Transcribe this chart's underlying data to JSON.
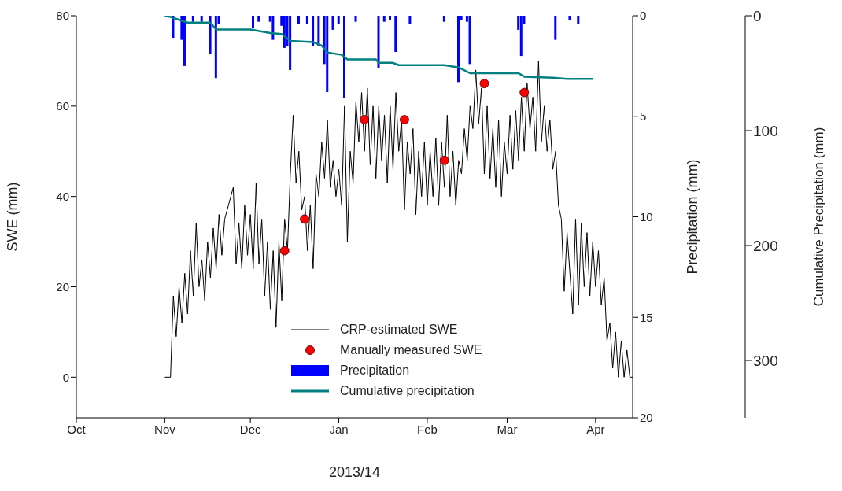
{
  "chart_data": {
    "type": "line",
    "xlabel": "2013/14",
    "ylabel": "SWE (mm)",
    "y2label": "Precipitation (mm)",
    "y3label": "Cumulative Precipitation (mm)",
    "xlim": [
      "2013-10-01",
      "2014-04-14"
    ],
    "xticks": [
      {
        "value": "2013-10-01",
        "label": "Oct"
      },
      {
        "value": "2013-11-01",
        "label": "Nov"
      },
      {
        "value": "2013-12-01",
        "label": "Dec"
      },
      {
        "value": "2014-01-01",
        "label": "Jan"
      },
      {
        "value": "2014-02-01",
        "label": "Feb"
      },
      {
        "value": "2014-03-01",
        "label": "Mar"
      },
      {
        "value": "2014-04-01",
        "label": "Apr"
      }
    ],
    "ylim": [
      -9,
      80
    ],
    "yticks": [
      0,
      20,
      40,
      60,
      80
    ],
    "y2lim": [
      20,
      0
    ],
    "y2ticks": [
      0,
      5,
      10,
      15,
      20
    ],
    "y3lim": [
      350,
      0
    ],
    "y3ticks": [
      0,
      100,
      200,
      300
    ],
    "legend": "bottom",
    "line_style": "solid",
    "series": [
      {
        "name": "CRP-estimated SWE",
        "color": "#000000",
        "marker": "none",
        "x": [
          "2013-11-01",
          "2013-11-03",
          "2013-11-04",
          "2013-11-05",
          "2013-11-06",
          "2013-11-07",
          "2013-11-08",
          "2013-11-09",
          "2013-11-10",
          "2013-11-11",
          "2013-11-12",
          "2013-11-13",
          "2013-11-14",
          "2013-11-15",
          "2013-11-16",
          "2013-11-17",
          "2013-11-18",
          "2013-11-19",
          "2013-11-20",
          "2013-11-21",
          "2013-11-22",
          "2013-11-25",
          "2013-11-26",
          "2013-11-27",
          "2013-11-28",
          "2013-11-29",
          "2013-11-30",
          "2013-12-01",
          "2013-12-02",
          "2013-12-03",
          "2013-12-04",
          "2013-12-05",
          "2013-12-06",
          "2013-12-07",
          "2013-12-08",
          "2013-12-09",
          "2013-12-10",
          "2013-12-11",
          "2013-12-12",
          "2013-12-13",
          "2013-12-14",
          "2013-12-15",
          "2013-12-16",
          "2013-12-17",
          "2013-12-18",
          "2013-12-19",
          "2013-12-20",
          "2013-12-21",
          "2013-12-22",
          "2013-12-23",
          "2013-12-24",
          "2013-12-25",
          "2013-12-26",
          "2013-12-27",
          "2013-12-28",
          "2013-12-29",
          "2013-12-30",
          "2013-12-31",
          "2014-01-01",
          "2014-01-02",
          "2014-01-03",
          "2014-01-04",
          "2014-01-05",
          "2014-01-06",
          "2014-01-07",
          "2014-01-08",
          "2014-01-09",
          "2014-01-10",
          "2014-01-11",
          "2014-01-12",
          "2014-01-13",
          "2014-01-14",
          "2014-01-15",
          "2014-01-16",
          "2014-01-17",
          "2014-01-18",
          "2014-01-19",
          "2014-01-20",
          "2014-01-21",
          "2014-01-22",
          "2014-01-23",
          "2014-01-24",
          "2014-01-25",
          "2014-01-26",
          "2014-01-27",
          "2014-01-28",
          "2014-01-29",
          "2014-01-30",
          "2014-01-31",
          "2014-02-01",
          "2014-02-02",
          "2014-02-03",
          "2014-02-04",
          "2014-02-05",
          "2014-02-06",
          "2014-02-07",
          "2014-02-08",
          "2014-02-09",
          "2014-02-10",
          "2014-02-11",
          "2014-02-12",
          "2014-02-13",
          "2014-02-14",
          "2014-02-15",
          "2014-02-16",
          "2014-02-17",
          "2014-02-18",
          "2014-02-19",
          "2014-02-20",
          "2014-02-21",
          "2014-02-22",
          "2014-02-23",
          "2014-02-24",
          "2014-02-25",
          "2014-02-26",
          "2014-02-27",
          "2014-02-28",
          "2014-03-01",
          "2014-03-02",
          "2014-03-03",
          "2014-03-04",
          "2014-03-05",
          "2014-03-06",
          "2014-03-07",
          "2014-03-08",
          "2014-03-09",
          "2014-03-10",
          "2014-03-11",
          "2014-03-12",
          "2014-03-13",
          "2014-03-14",
          "2014-03-15",
          "2014-03-16",
          "2014-03-17",
          "2014-03-18",
          "2014-03-19",
          "2014-03-20",
          "2014-03-21",
          "2014-03-22",
          "2014-03-24",
          "2014-03-25",
          "2014-03-26",
          "2014-03-27",
          "2014-03-28",
          "2014-03-29",
          "2014-03-30",
          "2014-03-31",
          "2014-04-01",
          "2014-04-02",
          "2014-04-03",
          "2014-04-04",
          "2014-04-05",
          "2014-04-06",
          "2014-04-07",
          "2014-04-08",
          "2014-04-09",
          "2014-04-10",
          "2014-04-11",
          "2014-04-12",
          "2014-04-13",
          "2014-04-14"
        ],
        "values": [
          0,
          0,
          18,
          9,
          20,
          12,
          23,
          14,
          28,
          18,
          34,
          20,
          26,
          17,
          30,
          22,
          33,
          24,
          36,
          27,
          35,
          42,
          25,
          34,
          24,
          38,
          27,
          36,
          24,
          43,
          25,
          35,
          18,
          30,
          15,
          28,
          11,
          30,
          17,
          35,
          28,
          45,
          58,
          43,
          50,
          37,
          40,
          28,
          38,
          24,
          45,
          40,
          52,
          44,
          57,
          42,
          48,
          40,
          46,
          38,
          60,
          30,
          50,
          43,
          61,
          52,
          63,
          50,
          64,
          47,
          60,
          44,
          60,
          48,
          58,
          43,
          60,
          46,
          63,
          50,
          57,
          37,
          52,
          45,
          55,
          36,
          50,
          40,
          52,
          38,
          50,
          40,
          53,
          38,
          52,
          42,
          58,
          40,
          50,
          38,
          48,
          45,
          55,
          48,
          60,
          55,
          68,
          56,
          64,
          45,
          60,
          44,
          55,
          42,
          57,
          40,
          52,
          45,
          58,
          46,
          59,
          48,
          62,
          50,
          65,
          55,
          62,
          50,
          70,
          52,
          60,
          50,
          57,
          46,
          50,
          38,
          35,
          19,
          32,
          14,
          35,
          16,
          34,
          20,
          32,
          18,
          30,
          20,
          28,
          16,
          22,
          8,
          12,
          2,
          10,
          0,
          8,
          0,
          6,
          0,
          0
        ]
      },
      {
        "name": "Manually measured SWE",
        "type": "scatter",
        "color": "#ff0000",
        "marker": "circle",
        "x": [
          "2013-12-13",
          "2013-12-20",
          "2014-01-10",
          "2014-01-24",
          "2014-02-07",
          "2014-02-21",
          "2014-03-07"
        ],
        "values": [
          28,
          35,
          57,
          57,
          48,
          65,
          63
        ]
      },
      {
        "name": "Precipitation",
        "type": "bar",
        "color": "#0000ff",
        "axis": "y2",
        "x": [
          "2013-11-04",
          "2013-11-07",
          "2013-11-08",
          "2013-11-11",
          "2013-11-14",
          "2013-11-17",
          "2013-11-19",
          "2013-11-20",
          "2013-12-02",
          "2013-12-04",
          "2013-12-08",
          "2013-12-09",
          "2013-12-12",
          "2013-12-13",
          "2013-12-14",
          "2013-12-15",
          "2013-12-18",
          "2013-12-21",
          "2013-12-23",
          "2013-12-25",
          "2013-12-27",
          "2013-12-28",
          "2013-12-30",
          "2014-01-01",
          "2014-01-03",
          "2014-01-07",
          "2014-01-15",
          "2014-01-17",
          "2014-01-19",
          "2014-01-21",
          "2014-01-26",
          "2014-02-07",
          "2014-02-12",
          "2014-02-13",
          "2014-02-15",
          "2014-02-16",
          "2014-03-05",
          "2014-03-06",
          "2014-03-07",
          "2014-03-18",
          "2014-03-23",
          "2014-03-26"
        ],
        "values": [
          1.1,
          1.2,
          2.5,
          0.3,
          0.3,
          1.9,
          3.1,
          0.4,
          0.6,
          0.3,
          0.3,
          1.2,
          0.5,
          1.6,
          1.5,
          2.7,
          0.4,
          0.4,
          1.5,
          1.5,
          2.4,
          3.8,
          0.7,
          0.4,
          4.1,
          0.3,
          2.6,
          0.3,
          0.2,
          1.8,
          0.4,
          0.3,
          3.3,
          0.2,
          0.3,
          2.4,
          0.7,
          2.0,
          0.4,
          1.2,
          0.2,
          0.4
        ]
      },
      {
        "name": "Cumulative precipitation",
        "color": "#008080",
        "marker": "none",
        "axis": "y3",
        "x": [
          "2013-11-01",
          "2013-11-03",
          "2013-11-09",
          "2013-11-17",
          "2013-11-19",
          "2013-12-01",
          "2013-12-08",
          "2013-12-12",
          "2013-12-15",
          "2013-12-23",
          "2013-12-26",
          "2013-12-28",
          "2014-01-02",
          "2014-01-04",
          "2014-01-14",
          "2014-01-15",
          "2014-01-20",
          "2014-01-22",
          "2014-02-07",
          "2014-02-12",
          "2014-02-16",
          "2014-03-05",
          "2014-03-07",
          "2014-03-17",
          "2014-03-22",
          "2014-03-31"
        ],
        "values": [
          0,
          1,
          6,
          6,
          12,
          12,
          15,
          16,
          22,
          23,
          26,
          32,
          34,
          38,
          38,
          41,
          41,
          43,
          43,
          45,
          50,
          50,
          53,
          54,
          55,
          55
        ]
      }
    ]
  }
}
